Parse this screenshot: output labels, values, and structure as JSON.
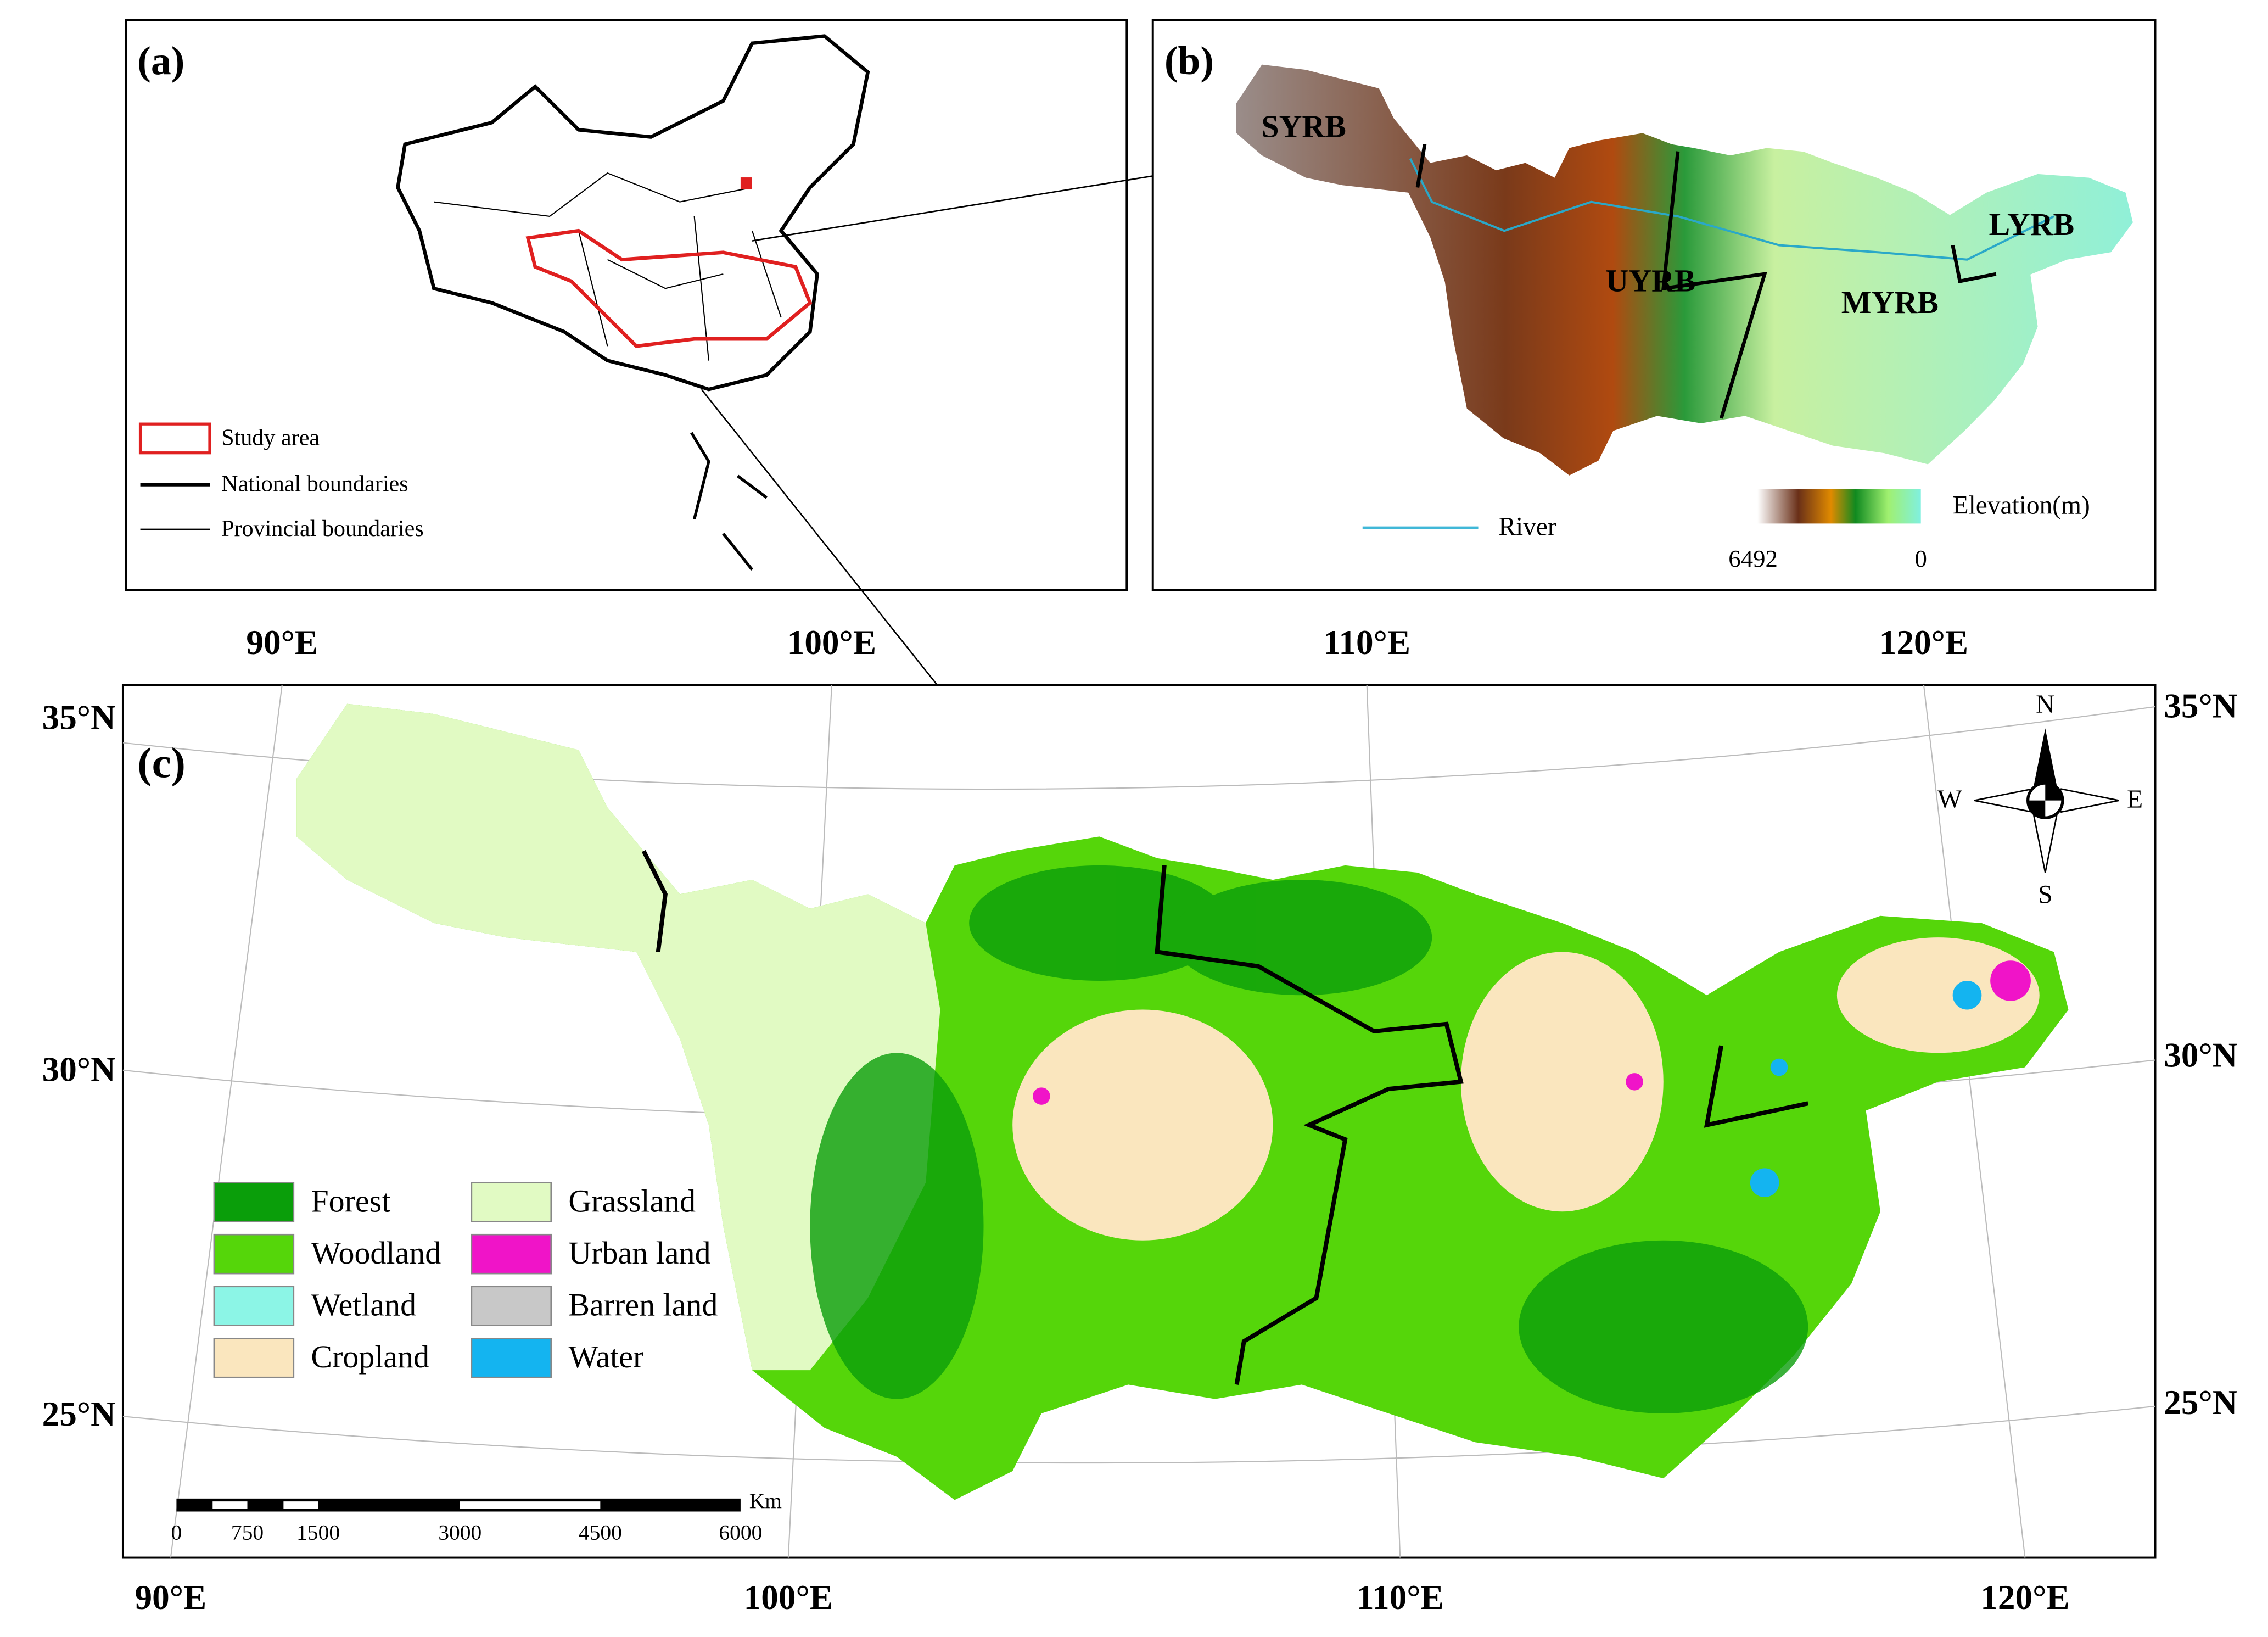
{
  "panel_a": {
    "label": "(a)",
    "legend": [
      "Study area",
      "National boundaries",
      "Provincial boundaries"
    ]
  },
  "panel_b": {
    "label": "(b)",
    "regions": [
      "SYRB",
      "UYRB",
      "MYRB",
      "LYRB"
    ],
    "river_label": "River",
    "elevation_title": "Elevation(m)",
    "elevation_max": "6492",
    "elevation_min": "0"
  },
  "panel_c": {
    "label": "(c)",
    "longitudes_top": [
      "90°E",
      "100°E",
      "110°E",
      "120°E"
    ],
    "longitudes_bottom": [
      "90°E",
      "100°E",
      "110°E",
      "120°E"
    ],
    "latitudes_left": [
      "35°N",
      "30°N",
      "25°N"
    ],
    "latitudes_right": [
      "35°N",
      "30°N",
      "25°N"
    ],
    "compass": {
      "north": "N",
      "south": "S",
      "west": "W",
      "east": "E"
    },
    "legend": [
      {
        "label": "Forest",
        "color": "#0a9e0a"
      },
      {
        "label": "Woodland",
        "color": "#55d60a"
      },
      {
        "label": "Wetland",
        "color": "#8cf5e6"
      },
      {
        "label": "Cropland",
        "color": "#fae6be"
      },
      {
        "label": "Grassland",
        "color": "#e1fac3"
      },
      {
        "label": "Urban land",
        "color": "#f014c8"
      },
      {
        "label": "Barren land",
        "color": "#c8c8c8"
      },
      {
        "label": "Water",
        "color": "#14b4f0"
      }
    ],
    "scale_bar": {
      "ticks": [
        "0",
        "750",
        "1500",
        "3000",
        "4500",
        "6000"
      ],
      "unit": "Km"
    }
  }
}
